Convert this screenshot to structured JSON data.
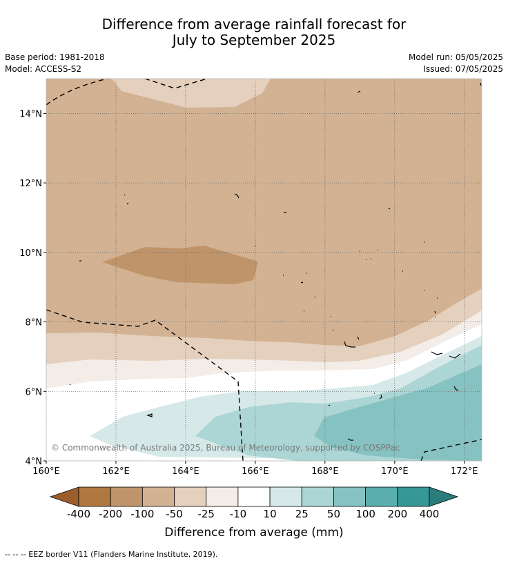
{
  "title": {
    "line1": "Difference from average rainfall forecast for",
    "line2": "July to September 2025"
  },
  "meta": {
    "base_period": "Base period: 1981-2018",
    "model": "Model: ACCESS-S2",
    "model_run": "Model run: 05/05/2025",
    "issued": "Issued: 07/05/2025"
  },
  "map": {
    "lon_labels": [
      "160°E",
      "162°E",
      "164°E",
      "166°E",
      "168°E",
      "170°E",
      "172°E"
    ],
    "lat_labels": [
      "4°N",
      "6°N",
      "8°N",
      "10°N",
      "12°N",
      "14°N"
    ],
    "lon_range": [
      160,
      172.5
    ],
    "lat_range": [
      4,
      15
    ],
    "gridlines": true,
    "copyright": "© Commonwealth of Australia 2025, Bureau of Meteorology, supported by COSPPac"
  },
  "colorbar": {
    "labels": [
      "-400",
      "-200",
      "-100",
      "-50",
      "-25",
      "-10",
      "10",
      "25",
      "50",
      "100",
      "200",
      "400"
    ],
    "colors": [
      "#9c5f2c",
      "#b07840",
      "#c0946a",
      "#d2b293",
      "#e4d0bd",
      "#f4ece6",
      "#ffffff",
      "#d6e9e8",
      "#acd6d5",
      "#86c2c1",
      "#5aaead",
      "#359896",
      "#2b7d7b"
    ],
    "unit_label": "Difference from average (mm)"
  },
  "footer": {
    "eez_note": "--  --  -- EEZ border V11 (Flanders Marine Institute, 2019)."
  }
}
